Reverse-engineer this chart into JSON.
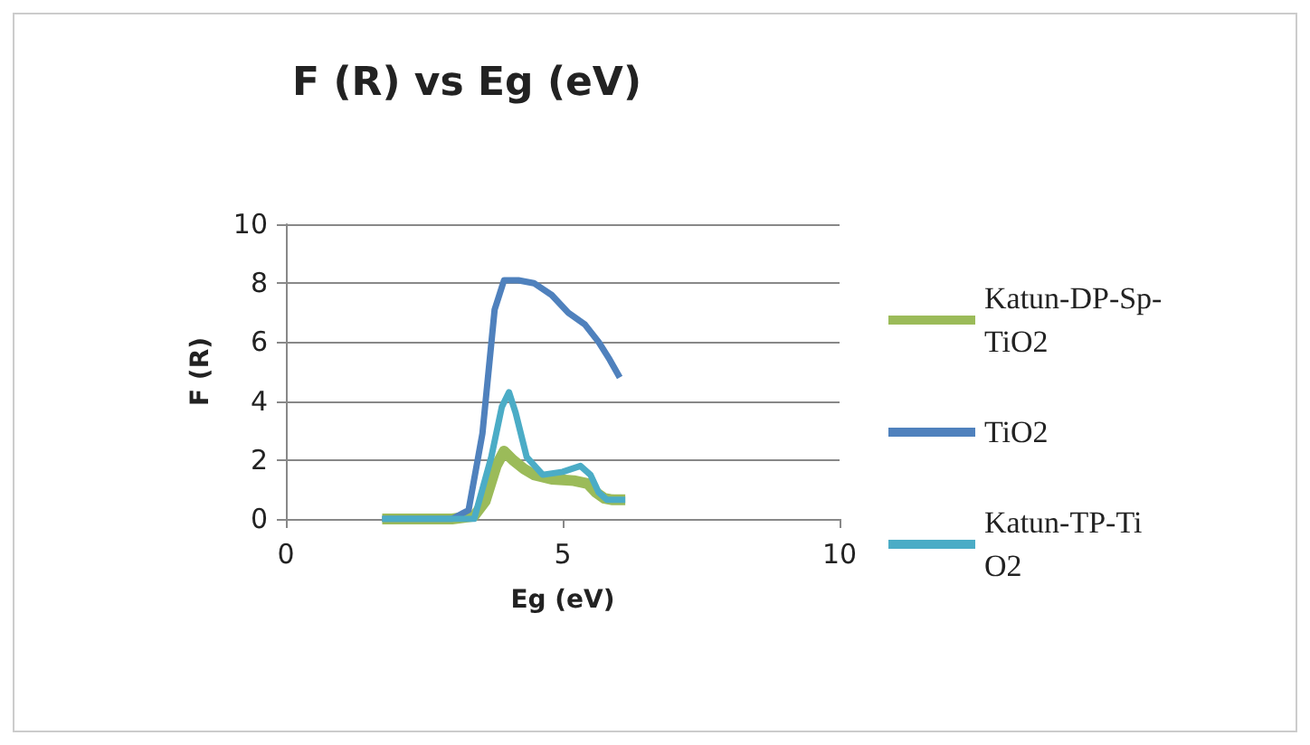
{
  "chart_data": {
    "type": "line",
    "title": "F (R) vs Eg (eV)",
    "xlabel": "Eg (eV)",
    "ylabel": "F (R)",
    "xlim": [
      0,
      10
    ],
    "xticks": [
      0,
      5,
      10
    ],
    "ylim": [
      0,
      10
    ],
    "yticks": [
      0,
      2,
      4,
      6,
      8,
      10
    ],
    "grid": "y",
    "legend": "right",
    "marker": "none",
    "series": [
      {
        "name": "Katun-DP-Sp-TiO2",
        "color": "#9bbb59",
        "x": [
          1.74,
          3.0,
          3.4,
          3.6,
          3.8,
          3.94,
          4.1,
          4.3,
          4.48,
          4.8,
          5.2,
          5.45,
          5.6,
          5.75,
          5.9,
          6.13
        ],
        "values": [
          0,
          0,
          0.1,
          0.6,
          1.8,
          2.3,
          2.0,
          1.7,
          1.5,
          1.35,
          1.3,
          1.2,
          0.9,
          0.7,
          0.65,
          0.65
        ]
      },
      {
        "name": "TiO2",
        "color": "#4f81bd",
        "x": [
          1.74,
          3.0,
          3.3,
          3.55,
          3.77,
          3.94,
          4.2,
          4.48,
          4.8,
          5.1,
          5.4,
          5.65,
          5.85,
          6.03
        ],
        "values": [
          0,
          0,
          0.3,
          2.9,
          7.1,
          8.1,
          8.1,
          8.0,
          7.6,
          7.0,
          6.6,
          6.0,
          5.4,
          4.8
        ]
      },
      {
        "name": "Katun-TP-TiO2",
        "color": "#4bacc6",
        "x": [
          1.74,
          3.0,
          3.4,
          3.71,
          3.9,
          4.03,
          4.15,
          4.35,
          4.64,
          5.0,
          5.32,
          5.5,
          5.65,
          5.8,
          6.13
        ],
        "values": [
          0,
          0,
          0,
          2.1,
          3.8,
          4.3,
          3.6,
          2.1,
          1.5,
          1.6,
          1.8,
          1.5,
          0.9,
          0.65,
          0.65
        ]
      }
    ]
  }
}
